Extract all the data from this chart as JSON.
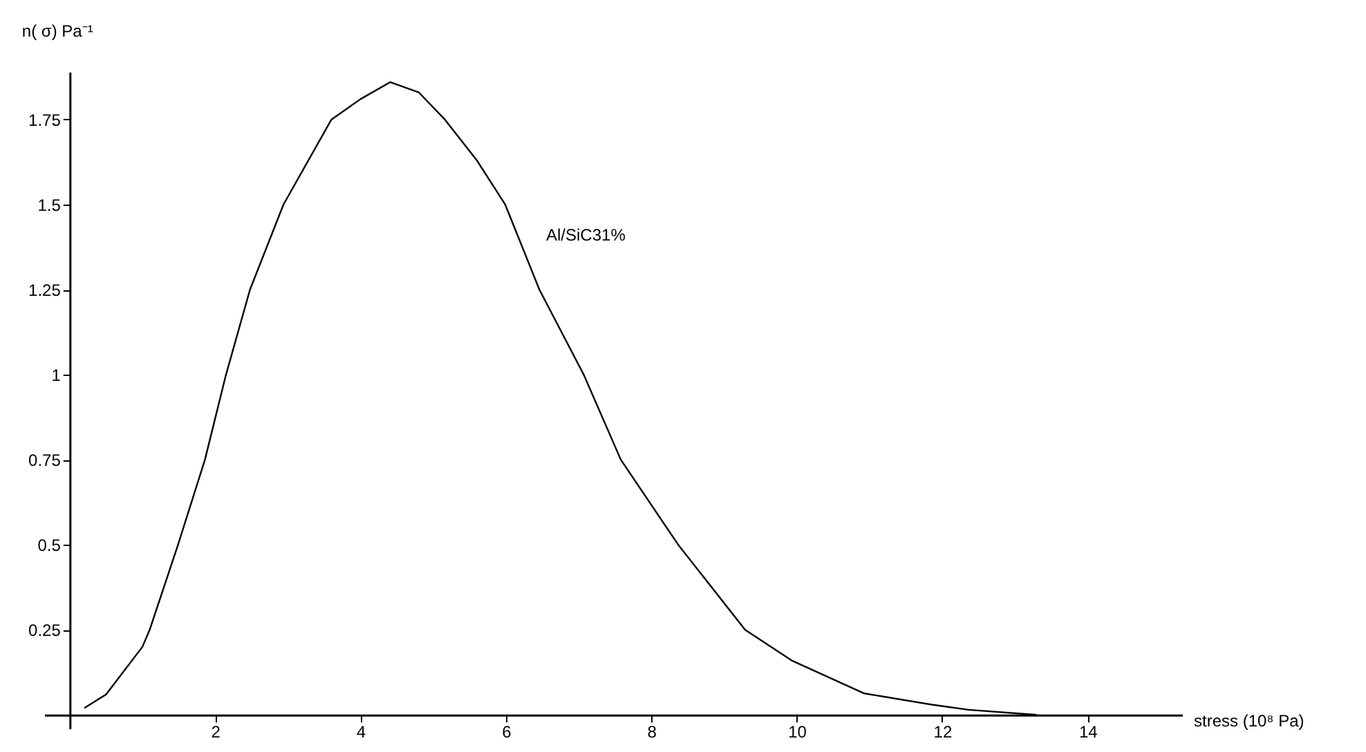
{
  "chart_data": {
    "type": "line",
    "xlabel": "stress  (10⁸ Pa)",
    "ylabel": "n( σ)   Pa⁻¹",
    "xlim": [
      -0.35,
      15.3
    ],
    "ylim": [
      -0.04,
      1.89
    ],
    "xticks": [
      2,
      4,
      6,
      8,
      10,
      12,
      14
    ],
    "yticks": [
      0.25,
      0.5,
      0.75,
      1,
      1.25,
      1.5,
      1.75
    ],
    "grid": false,
    "legend": false,
    "marker": "none",
    "line_style": "solid",
    "x": [
      0.2,
      0.5,
      1,
      1.1,
      1.49,
      1.86,
      2.15,
      2.48,
      2.94,
      3.6,
      4.0,
      4.41,
      4.8,
      5.16,
      5.6,
      5.99,
      6.46,
      7.07,
      7.58,
      8.37,
      9.29,
      9.93,
      10.93,
      11.86,
      12.36,
      13.3
    ],
    "series": [
      {
        "name": "Al/SiC31%",
        "color": "#000000",
        "values": [
          0.02,
          0.06,
          0.2,
          0.25,
          0.5,
          0.75,
          1.0,
          1.25,
          1.5,
          1.75,
          1.81,
          1.86,
          1.83,
          1.75,
          1.63,
          1.5,
          1.25,
          1.0,
          0.75,
          0.5,
          0.25,
          0.16,
          0.063,
          0.03,
          0.015,
          0.0
        ]
      }
    ]
  }
}
